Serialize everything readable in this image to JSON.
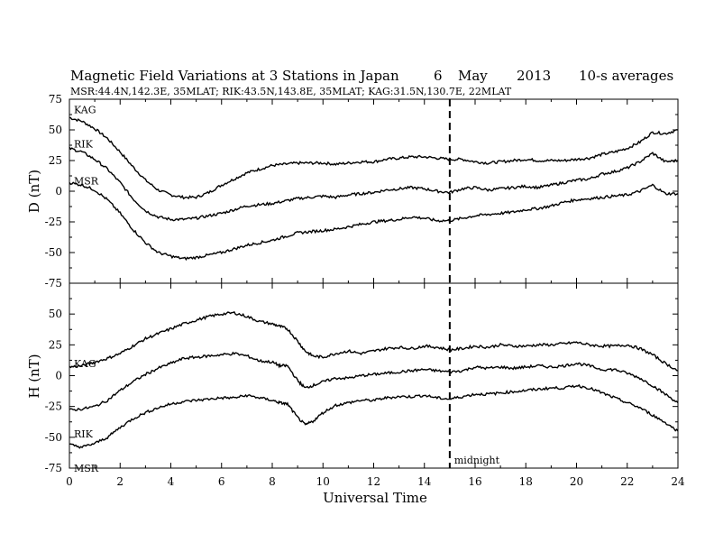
{
  "title": {
    "main": "Magnetic Field Variations at 3 Stations in Japan",
    "day": "6",
    "month": "May",
    "year": "2013",
    "averaging": "10-s averages",
    "stations": "MSR:44.4N,142.3E, 35MLAT;  RIK:43.5N,143.8E, 35MLAT;  KAG:31.5N,130.7E, 22MLAT"
  },
  "chart_data": [
    {
      "type": "line",
      "panel": "D",
      "ylabel": "D (nT)",
      "xlabel": "",
      "ylim": [
        -75,
        75
      ],
      "xlim": [
        0,
        24
      ],
      "yticks": [
        "75",
        "50",
        "25",
        "0",
        "-25",
        "-50",
        "-75"
      ],
      "series": [
        {
          "name": "KAG",
          "x": [
            0,
            0.5,
            1,
            1.5,
            2,
            2.5,
            3,
            3.5,
            4,
            4.5,
            5,
            5.5,
            6,
            6.5,
            7,
            7.5,
            8,
            8.5,
            9,
            9.5,
            10,
            10.5,
            11,
            11.5,
            12,
            12.5,
            13,
            13.5,
            14,
            14.5,
            15,
            15.5,
            16,
            16.5,
            17,
            17.5,
            18,
            18.5,
            19,
            19.5,
            20,
            20.5,
            21,
            21.5,
            22,
            22.5,
            23,
            23.5,
            24
          ],
          "values": [
            60,
            57,
            51,
            43,
            32,
            20,
            9,
            1,
            -3,
            -5,
            -5,
            -1,
            5,
            10,
            15,
            18,
            21,
            22,
            23,
            23,
            23,
            22,
            23,
            24,
            24,
            26,
            27,
            28,
            28,
            27,
            26,
            26,
            24,
            23,
            24,
            25,
            26,
            25,
            25,
            25,
            26,
            27,
            30,
            32,
            35,
            40,
            48,
            47,
            50
          ]
        },
        {
          "name": "RIK",
          "x": [
            0,
            0.5,
            1,
            1.5,
            2,
            2.5,
            3,
            3.5,
            4,
            4.5,
            5,
            5.5,
            6,
            6.5,
            7,
            7.5,
            8,
            8.5,
            9,
            9.5,
            10,
            10.5,
            11,
            11.5,
            12,
            12.5,
            13,
            13.5,
            14,
            14.5,
            15,
            15.5,
            16,
            16.5,
            17,
            17.5,
            18,
            18.5,
            19,
            19.5,
            20,
            20.5,
            21,
            21.5,
            22,
            22.5,
            23,
            23.5,
            24
          ],
          "values": [
            35,
            32,
            26,
            18,
            7,
            -6,
            -16,
            -21,
            -23,
            -23,
            -22,
            -20,
            -18,
            -15,
            -12,
            -11,
            -10,
            -8,
            -6,
            -5,
            -4,
            -5,
            -3,
            -2,
            -1,
            1,
            2,
            3,
            2,
            0,
            -1,
            2,
            3,
            1,
            2,
            3,
            4,
            3,
            5,
            7,
            9,
            10,
            14,
            16,
            19,
            24,
            31,
            24,
            25
          ]
        },
        {
          "name": "MSR",
          "x": [
            0,
            0.5,
            1,
            1.5,
            2,
            2.5,
            3,
            3.5,
            4,
            4.5,
            5,
            5.5,
            6,
            6.5,
            7,
            7.5,
            8,
            8.5,
            9,
            9.5,
            10,
            10.5,
            11,
            11.5,
            12,
            12.5,
            13,
            13.5,
            14,
            14.5,
            15,
            15.5,
            16,
            16.5,
            17,
            17.5,
            18,
            18.5,
            19,
            19.5,
            20,
            20.5,
            21,
            21.5,
            22,
            22.5,
            23,
            23.5,
            24
          ],
          "values": [
            7,
            5,
            1,
            -7,
            -18,
            -31,
            -42,
            -50,
            -53,
            -55,
            -54,
            -52,
            -50,
            -47,
            -44,
            -42,
            -40,
            -37,
            -34,
            -33,
            -32,
            -31,
            -29,
            -27,
            -25,
            -24,
            -23,
            -21,
            -22,
            -24,
            -24,
            -22,
            -20,
            -19,
            -18,
            -17,
            -15,
            -14,
            -12,
            -9,
            -7,
            -6,
            -5,
            -4,
            -3,
            0,
            5,
            -2,
            -2
          ]
        }
      ]
    },
    {
      "type": "line",
      "panel": "H",
      "ylabel": "H (nT)",
      "xlabel": "Universal Time",
      "ylim": [
        -75,
        75
      ],
      "xlim": [
        0,
        24
      ],
      "yticks": [
        "",
        "50",
        "25",
        "0",
        "-25",
        "-50",
        "-75"
      ],
      "xticks": [
        "0",
        "2",
        "4",
        "6",
        "8",
        "10",
        "12",
        "14",
        "16",
        "18",
        "20",
        "22",
        "24"
      ],
      "series": [
        {
          "name": "KAG",
          "x": [
            0,
            0.5,
            1,
            1.5,
            2,
            2.5,
            3,
            3.5,
            4,
            4.5,
            5,
            5.5,
            6,
            6.5,
            7,
            7.5,
            8,
            8.3,
            8.6,
            9,
            9.3,
            9.6,
            10,
            10.5,
            11,
            11.5,
            12,
            12.5,
            13,
            13.5,
            14,
            14.5,
            15,
            15.5,
            16,
            16.5,
            17,
            17.5,
            18,
            18.5,
            19,
            19.5,
            20,
            20.5,
            21,
            21.5,
            22,
            22.5,
            23,
            23.5,
            24
          ],
          "values": [
            7,
            8,
            11,
            14,
            18,
            24,
            30,
            34,
            38,
            42,
            45,
            48,
            50,
            51,
            48,
            44,
            42,
            40,
            38,
            28,
            20,
            16,
            15,
            18,
            20,
            18,
            20,
            22,
            23,
            22,
            24,
            23,
            21,
            22,
            24,
            23,
            25,
            24,
            24,
            25,
            25,
            26,
            27,
            25,
            24,
            24,
            25,
            22,
            17,
            10,
            4
          ]
        },
        {
          "name": "RIK",
          "x": [
            0,
            0.5,
            1,
            1.5,
            2,
            2.5,
            3,
            3.5,
            4,
            4.5,
            5,
            5.5,
            6,
            6.5,
            7,
            7.5,
            8,
            8.3,
            8.6,
            9,
            9.3,
            9.6,
            10,
            10.5,
            11,
            11.5,
            12,
            12.5,
            13,
            13.5,
            14,
            14.5,
            15,
            15.5,
            16,
            16.5,
            17,
            17.5,
            18,
            18.5,
            19,
            19.5,
            20,
            20.5,
            21,
            21.5,
            22,
            22.5,
            23,
            23.5,
            24
          ],
          "values": [
            -28,
            -27,
            -25,
            -20,
            -12,
            -5,
            1,
            6,
            10,
            14,
            15,
            16,
            17,
            18,
            16,
            12,
            11,
            8,
            8,
            -4,
            -10,
            -8,
            -5,
            -2,
            -2,
            0,
            1,
            2,
            3,
            4,
            5,
            4,
            3,
            4,
            7,
            6,
            7,
            6,
            7,
            8,
            7,
            8,
            10,
            8,
            5,
            5,
            2,
            -2,
            -8,
            -15,
            -22
          ]
        },
        {
          "name": "MSR",
          "x": [
            0,
            0.5,
            1,
            1.5,
            2,
            2.5,
            3,
            3.5,
            4,
            4.5,
            5,
            5.5,
            6,
            6.5,
            7,
            7.5,
            8,
            8.3,
            8.6,
            9,
            9.3,
            9.6,
            10,
            10.5,
            11,
            11.5,
            12,
            12.5,
            13,
            13.5,
            14,
            14.5,
            15,
            15.5,
            16,
            16.5,
            17,
            17.5,
            18,
            18.5,
            19,
            19.5,
            20,
            20.5,
            21,
            21.5,
            22,
            22.5,
            23,
            23.5,
            24
          ],
          "values": [
            -56,
            -58,
            -55,
            -50,
            -42,
            -35,
            -30,
            -26,
            -23,
            -21,
            -20,
            -19,
            -18,
            -18,
            -16,
            -18,
            -20,
            -22,
            -23,
            -34,
            -40,
            -37,
            -30,
            -24,
            -22,
            -20,
            -20,
            -18,
            -17,
            -17,
            -16,
            -18,
            -19,
            -17,
            -15,
            -15,
            -14,
            -13,
            -12,
            -11,
            -10,
            -10,
            -8,
            -10,
            -14,
            -18,
            -22,
            -26,
            -32,
            -38,
            -45
          ]
        }
      ],
      "annotations": [
        {
          "text": "midnight",
          "x": 15
        }
      ]
    }
  ]
}
